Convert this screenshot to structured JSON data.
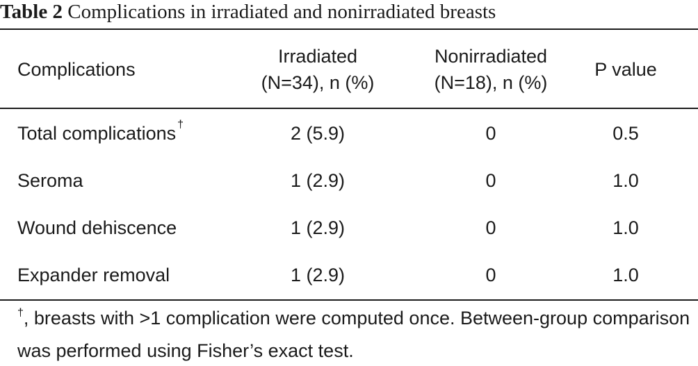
{
  "caption": {
    "number": "Table 2",
    "title": "Complications in irradiated and nonirradiated breasts"
  },
  "header": {
    "col1": "Complications",
    "col2_line1": "Irradiated",
    "col2_line2": "(N=34), n (%)",
    "col3_line1": "Nonirradiated",
    "col3_line2": "(N=18), n (%)",
    "col4": "P value"
  },
  "rows": [
    {
      "label": "Total complications",
      "dagger": "†",
      "irradiated": "2 (5.9)",
      "nonirradiated": "0",
      "p": "0.5"
    },
    {
      "label": "Seroma",
      "irradiated": "1 (2.9)",
      "nonirradiated": "0",
      "p": "1.0"
    },
    {
      "label": "Wound dehiscence",
      "irradiated": "1 (2.9)",
      "nonirradiated": "0",
      "p": "1.0"
    },
    {
      "label": "Expander removal",
      "irradiated": "1 (2.9)",
      "nonirradiated": "0",
      "p": "1.0"
    }
  ],
  "footnote": {
    "dagger": "†",
    "text": ", breasts with >1 complication were computed once. Between-group comparison was performed using Fisher’s exact test."
  }
}
